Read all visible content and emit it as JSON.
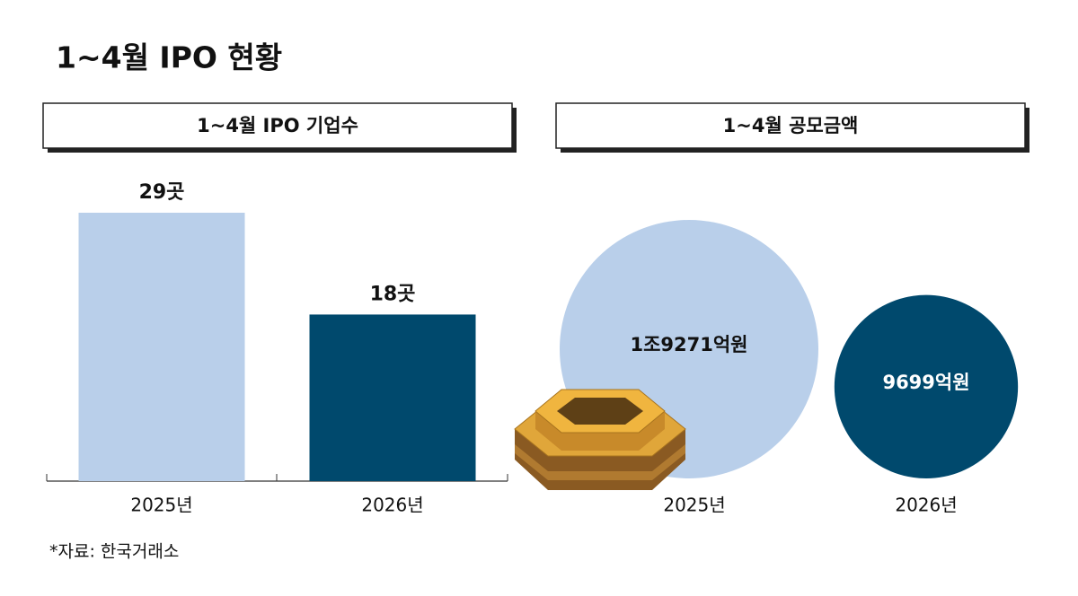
{
  "title": "1~4월 IPO 현황",
  "source": "*자료: 한국거래소",
  "chart_data": [
    {
      "type": "bar",
      "title": "1~4월 IPO 기업수",
      "categories": [
        "2025년",
        "2026년"
      ],
      "values": [
        29,
        18
      ],
      "value_labels": [
        "29곳",
        "18곳"
      ],
      "colors": [
        "#b9cfea",
        "#00496d"
      ]
    },
    {
      "type": "bubble",
      "title": "1~4월 공모금액",
      "categories": [
        "2025년",
        "2026년"
      ],
      "values": [
        19271,
        9699
      ],
      "value_labels": [
        "1조9271억원",
        "9699억원"
      ],
      "colors": [
        "#b9cfea",
        "#00496d"
      ],
      "label_colors": [
        "#111111",
        "#ffffff"
      ]
    }
  ]
}
